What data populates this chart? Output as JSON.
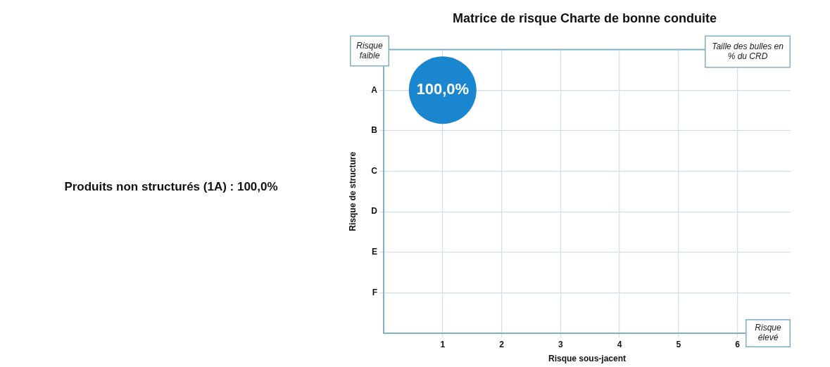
{
  "chart_data": {
    "type": "bubble",
    "orientation": "horizontal",
    "title": "Matrice de risque Charte de bonne conduite",
    "xlabel": "Risque sous-jacent",
    "ylabel": "Risque de structure",
    "categories": [
      "A",
      "B",
      "C",
      "D",
      "E",
      "F"
    ],
    "series": [
      {
        "color": "#1a86cf",
        "values": [
          1,
          null,
          null,
          null,
          null,
          null
        ],
        "sizes": [
          1,
          null,
          null,
          null,
          null,
          null
        ],
        "value_labels": [
          "100,0%",
          null,
          null,
          null,
          null,
          null
        ]
      }
    ],
    "xlim": [
      0,
      6.9
    ],
    "xticks": [
      1,
      2,
      3,
      4,
      5,
      6
    ],
    "grid": true,
    "annotations": [
      "Risque faible",
      "Taille des bulles en % du CRD",
      "Risque élevé",
      "Produits non structurés (1A) : 100,0%"
    ]
  }
}
